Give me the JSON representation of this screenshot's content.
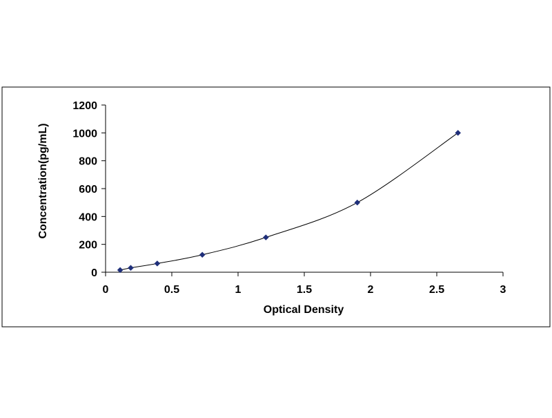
{
  "chart_data": {
    "type": "scatter",
    "title": "",
    "xlabel": "Optical Density",
    "ylabel": "Concentration(pg/mL)",
    "xlim": [
      0,
      3
    ],
    "ylim": [
      0,
      1200
    ],
    "x_ticks": [
      0,
      0.5,
      1,
      1.5,
      2,
      2.5,
      3
    ],
    "x_tick_labels": [
      "0",
      "0.5",
      "1",
      "1.5",
      "2",
      "2.5",
      "3"
    ],
    "y_ticks": [
      0,
      200,
      400,
      600,
      800,
      1000,
      1200
    ],
    "y_tick_labels": [
      "0",
      "200",
      "400",
      "600",
      "800",
      "1000",
      "1200"
    ],
    "grid": false,
    "legend": "none",
    "trendline": "smooth curve through points",
    "series": [
      {
        "color": "#1f2f7a",
        "x": [
          0.11,
          0.19,
          0.39,
          0.73,
          1.21,
          1.9,
          2.66
        ],
        "y": [
          15.6,
          31.25,
          62.5,
          125,
          250,
          500,
          1000
        ]
      }
    ]
  }
}
